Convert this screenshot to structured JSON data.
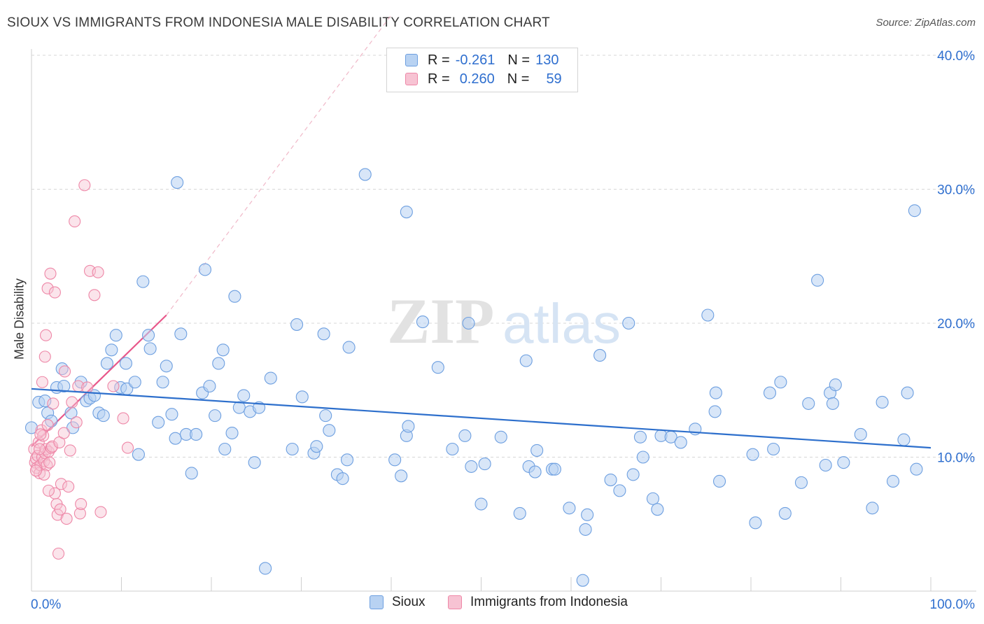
{
  "header": {
    "title": "SIOUX VS IMMIGRANTS FROM INDONESIA MALE DISABILITY CORRELATION CHART",
    "source": "Source: ZipAtlas.com"
  },
  "watermark": {
    "zip": "ZIP",
    "atlas": "atlas"
  },
  "legend": {
    "rows": [
      {
        "r_label": "R =",
        "r_value": "-0.261",
        "n_label": "N =",
        "n_value": "130"
      },
      {
        "r_label": "R =",
        "r_value": "0.260",
        "n_label": "N =",
        "n_value": "59"
      }
    ],
    "bottom": [
      "Sioux",
      "Immigrants from Indonesia"
    ]
  },
  "colors": {
    "sioux_fill": "#b8d2f2",
    "sioux_stroke": "#6d9fe0",
    "sioux_line": "#2d6fcc",
    "indo_fill": "#f7c3d3",
    "indo_stroke": "#ee87a7",
    "indo_line": "#e8578a",
    "tick_label": "#2f6fcf",
    "grid": "#d7d7d7"
  },
  "chart_data": {
    "type": "scatter",
    "title": "SIOUX VS IMMIGRANTS FROM INDONESIA MALE DISABILITY CORRELATION CHART",
    "xlabel": "",
    "ylabel": "Male Disability",
    "xlim": [
      0,
      100
    ],
    "ylim": [
      0,
      40
    ],
    "x_tick_labels": [
      "0.0%",
      "100.0%"
    ],
    "y_ticks": [
      10,
      20,
      30,
      40
    ],
    "y_tick_labels": [
      "10.0%",
      "20.0%",
      "30.0%",
      "40.0%"
    ],
    "grid": true,
    "legend_position": "top-center",
    "series": [
      {
        "name": "Sioux",
        "r": -0.261,
        "n": 130,
        "trend": {
          "x": [
            0,
            100
          ],
          "y": [
            15.1,
            10.7
          ]
        },
        "points": [
          [
            0,
            12.2
          ],
          [
            0.8,
            14.1
          ],
          [
            1.5,
            14.2
          ],
          [
            1.8,
            13.3
          ],
          [
            2.2,
            12.7
          ],
          [
            2.8,
            15.2
          ],
          [
            3.4,
            16.6
          ],
          [
            3.6,
            15.3
          ],
          [
            4.4,
            13.3
          ],
          [
            4.6,
            12.2
          ],
          [
            5.5,
            15.6
          ],
          [
            6.1,
            14.2
          ],
          [
            6.5,
            14.4
          ],
          [
            7.0,
            14.6
          ],
          [
            7.5,
            13.3
          ],
          [
            8.0,
            13.1
          ],
          [
            8.4,
            17.0
          ],
          [
            8.9,
            18.0
          ],
          [
            9.4,
            19.1
          ],
          [
            9.9,
            15.2
          ],
          [
            10.5,
            17.0
          ],
          [
            10.6,
            15.1
          ],
          [
            11.5,
            15.6
          ],
          [
            11.9,
            10.2
          ],
          [
            12.4,
            23.1
          ],
          [
            13.0,
            19.1
          ],
          [
            13.2,
            18.1
          ],
          [
            14.1,
            12.6
          ],
          [
            14.6,
            15.6
          ],
          [
            15.0,
            16.8
          ],
          [
            15.6,
            13.2
          ],
          [
            16.0,
            11.4
          ],
          [
            16.2,
            30.5
          ],
          [
            16.6,
            19.2
          ],
          [
            17.2,
            11.7
          ],
          [
            17.8,
            8.8
          ],
          [
            18.3,
            11.7
          ],
          [
            19.0,
            14.8
          ],
          [
            19.3,
            24.0
          ],
          [
            19.8,
            15.3
          ],
          [
            20.4,
            13.1
          ],
          [
            20.8,
            17.0
          ],
          [
            21.3,
            18.0
          ],
          [
            21.5,
            10.6
          ],
          [
            22.3,
            11.8
          ],
          [
            22.6,
            22.0
          ],
          [
            23.1,
            13.7
          ],
          [
            23.6,
            14.6
          ],
          [
            24.3,
            13.4
          ],
          [
            24.8,
            9.6
          ],
          [
            25.3,
            13.7
          ],
          [
            26.6,
            15.9
          ],
          [
            29.0,
            10.6
          ],
          [
            29.5,
            19.9
          ],
          [
            30.1,
            14.5
          ],
          [
            31.4,
            10.3
          ],
          [
            31.7,
            10.8
          ],
          [
            32.5,
            19.2
          ],
          [
            32.7,
            13.1
          ],
          [
            33.1,
            12.0
          ],
          [
            34.0,
            8.7
          ],
          [
            34.6,
            8.4
          ],
          [
            35.1,
            9.8
          ],
          [
            35.3,
            18.2
          ],
          [
            37.1,
            31.1
          ],
          [
            40.4,
            9.8
          ],
          [
            41.1,
            8.6
          ],
          [
            41.7,
            11.6
          ],
          [
            41.9,
            12.3
          ],
          [
            41.7,
            28.3
          ],
          [
            43.5,
            20.1
          ],
          [
            45.2,
            16.7
          ],
          [
            46.8,
            10.6
          ],
          [
            48.2,
            11.6
          ],
          [
            48.9,
            9.3
          ],
          [
            48.6,
            20.0
          ],
          [
            50.0,
            6.5
          ],
          [
            50.4,
            9.5
          ],
          [
            52.2,
            11.5
          ],
          [
            54.3,
            5.8
          ],
          [
            55.0,
            17.2
          ],
          [
            55.3,
            9.3
          ],
          [
            56.0,
            8.9
          ],
          [
            56.2,
            10.5
          ],
          [
            57.9,
            9.1
          ],
          [
            58.2,
            9.1
          ],
          [
            59.8,
            6.2
          ],
          [
            61.6,
            4.6
          ],
          [
            61.8,
            5.7
          ],
          [
            63.2,
            17.6
          ],
          [
            64.4,
            8.3
          ],
          [
            65.4,
            7.5
          ],
          [
            66.4,
            20.0
          ],
          [
            66.9,
            8.7
          ],
          [
            67.7,
            11.5
          ],
          [
            68.0,
            10.0
          ],
          [
            69.1,
            6.9
          ],
          [
            69.6,
            6.1
          ],
          [
            70.0,
            11.6
          ],
          [
            71.1,
            11.5
          ],
          [
            72.2,
            11.1
          ],
          [
            73.8,
            12.1
          ],
          [
            75.2,
            20.6
          ],
          [
            76.0,
            13.4
          ],
          [
            76.1,
            14.8
          ],
          [
            76.5,
            8.2
          ],
          [
            80.2,
            10.2
          ],
          [
            80.5,
            5.1
          ],
          [
            82.1,
            14.8
          ],
          [
            82.5,
            10.6
          ],
          [
            83.3,
            15.6
          ],
          [
            83.8,
            5.8
          ],
          [
            85.6,
            8.1
          ],
          [
            86.4,
            14.0
          ],
          [
            87.4,
            23.2
          ],
          [
            88.3,
            9.4
          ],
          [
            88.8,
            14.8
          ],
          [
            89.1,
            14.0
          ],
          [
            89.4,
            15.4
          ],
          [
            90.3,
            9.6
          ],
          [
            92.2,
            11.7
          ],
          [
            93.5,
            6.2
          ],
          [
            94.6,
            14.1
          ],
          [
            95.8,
            8.2
          ],
          [
            97.0,
            11.3
          ],
          [
            97.4,
            14.8
          ],
          [
            98.2,
            28.4
          ],
          [
            98.4,
            9.1
          ],
          [
            61.3,
            0.8
          ],
          [
            26.0,
            1.7
          ]
        ]
      },
      {
        "name": "Immigrants from Indonesia",
        "r": 0.26,
        "n": 59,
        "trend": {
          "x": [
            0,
            15
          ],
          "y": [
            10.8,
            20.6
          ]
        },
        "trend_extended": {
          "x": [
            15,
            40
          ],
          "y": [
            20.6,
            43.0
          ]
        },
        "points": [
          [
            0.3,
            10.6
          ],
          [
            0.4,
            9.6
          ],
          [
            0.5,
            9.9
          ],
          [
            0.6,
            9.2
          ],
          [
            0.7,
            10.1
          ],
          [
            0.8,
            11.1
          ],
          [
            0.9,
            8.8
          ],
          [
            1.0,
            9.4
          ],
          [
            1.1,
            12.0
          ],
          [
            1.2,
            10.0
          ],
          [
            1.3,
            11.6
          ],
          [
            1.4,
            9.7
          ],
          [
            1.5,
            10.3
          ],
          [
            1.6,
            10.6
          ],
          [
            1.7,
            9.4
          ],
          [
            1.8,
            12.4
          ],
          [
            1.2,
            15.6
          ],
          [
            1.5,
            17.5
          ],
          [
            1.6,
            19.1
          ],
          [
            1.8,
            22.6
          ],
          [
            1.9,
            10.4
          ],
          [
            2.1,
            23.7
          ],
          [
            2.2,
            10.7
          ],
          [
            2.3,
            10.8
          ],
          [
            2.4,
            14.0
          ],
          [
            2.6,
            22.3
          ],
          [
            2.8,
            6.5
          ],
          [
            2.6,
            7.3
          ],
          [
            2.9,
            5.7
          ],
          [
            3.1,
            11.1
          ],
          [
            3.3,
            8.0
          ],
          [
            3.6,
            11.8
          ],
          [
            3.7,
            16.4
          ],
          [
            3.9,
            5.4
          ],
          [
            4.1,
            7.8
          ],
          [
            4.3,
            10.5
          ],
          [
            4.5,
            14.1
          ],
          [
            4.8,
            27.6
          ],
          [
            5.0,
            12.6
          ],
          [
            5.2,
            15.3
          ],
          [
            5.4,
            5.8
          ],
          [
            5.5,
            6.5
          ],
          [
            5.9,
            30.3
          ],
          [
            6.2,
            15.2
          ],
          [
            6.5,
            23.9
          ],
          [
            7.0,
            22.1
          ],
          [
            7.4,
            23.8
          ],
          [
            7.7,
            5.9
          ],
          [
            9.1,
            15.3
          ],
          [
            10.2,
            12.9
          ],
          [
            10.7,
            10.7
          ],
          [
            3.0,
            2.8
          ],
          [
            1.9,
            7.5
          ],
          [
            0.9,
            10.6
          ],
          [
            1.4,
            8.7
          ],
          [
            0.5,
            9.0
          ],
          [
            1.0,
            11.7
          ],
          [
            2.0,
            9.6
          ],
          [
            3.2,
            6.1
          ]
        ]
      }
    ]
  }
}
